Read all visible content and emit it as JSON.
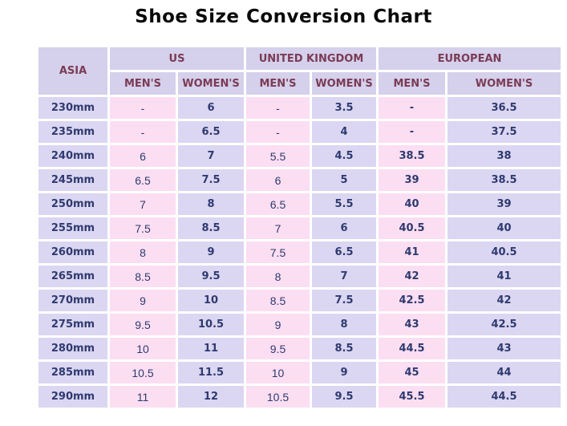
{
  "title": "Shoe Size Conversion Chart",
  "colors": {
    "header_bg": "#d5d0eb",
    "lavender_cell": "#dbd6f1",
    "pink_cell": "#fbdef2",
    "header_text": "#7b3b55",
    "data_text": "#2e3a70",
    "title_text": "#0a0a0a",
    "grid_gap": "#ffffff"
  },
  "chart_data": {
    "type": "table",
    "title": "Shoe Size Conversion Chart",
    "header": {
      "asia": "ASIA",
      "us": "US",
      "uk": "UNITED KINGDOM",
      "eu": "EUROPEAN",
      "mens": "MEN'S",
      "womens": "WOMEN'S"
    },
    "columns": [
      "ASIA",
      "US MEN'S",
      "US WOMEN'S",
      "UNITED KINGDOM MEN'S",
      "UNITED KINGDOM WOMEN'S",
      "EUROPEAN MEN'S",
      "EUROPEAN WOMEN'S"
    ],
    "rows": [
      {
        "asia": "230mm",
        "us_m": "-",
        "us_w": "6",
        "uk_m": "-",
        "uk_w": "3.5",
        "eu_m": "-",
        "eu_w": "36.5"
      },
      {
        "asia": "235mm",
        "us_m": "-",
        "us_w": "6.5",
        "uk_m": "-",
        "uk_w": "4",
        "eu_m": "-",
        "eu_w": "37.5"
      },
      {
        "asia": "240mm",
        "us_m": "6",
        "us_w": "7",
        "uk_m": "5.5",
        "uk_w": "4.5",
        "eu_m": "38.5",
        "eu_w": "38"
      },
      {
        "asia": "245mm",
        "us_m": "6.5",
        "us_w": "7.5",
        "uk_m": "6",
        "uk_w": "5",
        "eu_m": "39",
        "eu_w": "38.5"
      },
      {
        "asia": "250mm",
        "us_m": "7",
        "us_w": "8",
        "uk_m": "6.5",
        "uk_w": "5.5",
        "eu_m": "40",
        "eu_w": "39"
      },
      {
        "asia": "255mm",
        "us_m": "7.5",
        "us_w": "8.5",
        "uk_m": "7",
        "uk_w": "6",
        "eu_m": "40.5",
        "eu_w": "40"
      },
      {
        "asia": "260mm",
        "us_m": "8",
        "us_w": "9",
        "uk_m": "7.5",
        "uk_w": "6.5",
        "eu_m": "41",
        "eu_w": "40.5"
      },
      {
        "asia": "265mm",
        "us_m": "8.5",
        "us_w": "9.5",
        "uk_m": "8",
        "uk_w": "7",
        "eu_m": "42",
        "eu_w": "41"
      },
      {
        "asia": "270mm",
        "us_m": "9",
        "us_w": "10",
        "uk_m": "8.5",
        "uk_w": "7.5",
        "eu_m": "42.5",
        "eu_w": "42"
      },
      {
        "asia": "275mm",
        "us_m": "9.5",
        "us_w": "10.5",
        "uk_m": "9",
        "uk_w": "8",
        "eu_m": "43",
        "eu_w": "42.5"
      },
      {
        "asia": "280mm",
        "us_m": "10",
        "us_w": "11",
        "uk_m": "9.5",
        "uk_w": "8.5",
        "eu_m": "44.5",
        "eu_w": "43"
      },
      {
        "asia": "285mm",
        "us_m": "10.5",
        "us_w": "11.5",
        "uk_m": "10",
        "uk_w": "9",
        "eu_m": "45",
        "eu_w": "44"
      },
      {
        "asia": "290mm",
        "us_m": "11",
        "us_w": "12",
        "uk_m": "10.5",
        "uk_w": "9.5",
        "eu_m": "45.5",
        "eu_w": "44.5"
      }
    ]
  }
}
